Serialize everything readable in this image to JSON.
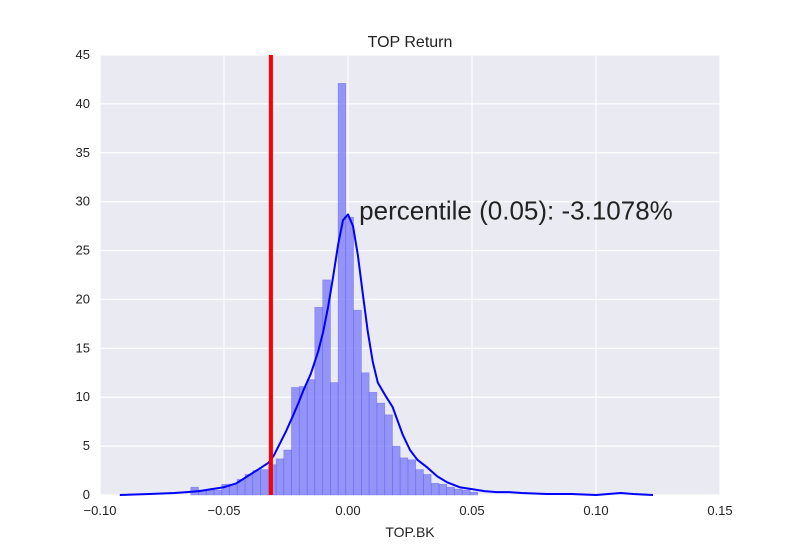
{
  "chart_data": {
    "type": "bar",
    "title": "TOP Return",
    "xlabel": "TOP.BK",
    "ylabel": "",
    "xlim": [
      -0.1,
      0.15
    ],
    "ylim": [
      0,
      45
    ],
    "x_ticks": [
      -0.1,
      -0.05,
      0.0,
      0.05,
      0.1,
      0.15
    ],
    "x_tick_labels": [
      "−0.10",
      "−0.05",
      "0.00",
      "0.05",
      "0.10",
      "0.15"
    ],
    "y_ticks": [
      0,
      5,
      10,
      15,
      20,
      25,
      30,
      35,
      40,
      45
    ],
    "y_tick_labels": [
      "0",
      "5",
      "10",
      "15",
      "20",
      "25",
      "30",
      "35",
      "40",
      "45"
    ],
    "grid": true,
    "histogram": {
      "bin_width": 0.00313,
      "bins": [
        {
          "left": -0.0634,
          "height": 0.8
        },
        {
          "left": -0.0603,
          "height": 0.5
        },
        {
          "left": -0.0572,
          "height": 0.5
        },
        {
          "left": -0.054,
          "height": 0.5
        },
        {
          "left": -0.0509,
          "height": 1.1
        },
        {
          "left": -0.0478,
          "height": 1.1
        },
        {
          "left": -0.0447,
          "height": 1.6
        },
        {
          "left": -0.0415,
          "height": 2.1
        },
        {
          "left": -0.0384,
          "height": 2.5
        },
        {
          "left": -0.0353,
          "height": 2.6
        },
        {
          "left": -0.0321,
          "height": 3.1
        },
        {
          "left": -0.029,
          "height": 3.7
        },
        {
          "left": -0.0259,
          "height": 4.6
        },
        {
          "left": -0.0228,
          "height": 11.0
        },
        {
          "left": -0.0196,
          "height": 11.1
        },
        {
          "left": -0.0165,
          "height": 11.8
        },
        {
          "left": -0.0134,
          "height": 19.2
        },
        {
          "left": -0.0102,
          "height": 22.0
        },
        {
          "left": -0.0071,
          "height": 11.5
        },
        {
          "left": -0.004,
          "height": 42.1
        },
        {
          "left": -0.0009,
          "height": 28.4
        },
        {
          "left": 0.0023,
          "height": 18.9
        },
        {
          "left": 0.0054,
          "height": 12.5
        },
        {
          "left": 0.0085,
          "height": 10.5
        },
        {
          "left": 0.0117,
          "height": 9.4
        },
        {
          "left": 0.0148,
          "height": 8.2
        },
        {
          "left": 0.0179,
          "height": 5.0
        },
        {
          "left": 0.021,
          "height": 3.8
        },
        {
          "left": 0.0242,
          "height": 3.6
        },
        {
          "left": 0.0273,
          "height": 2.6
        },
        {
          "left": 0.0304,
          "height": 2.1
        },
        {
          "left": 0.0336,
          "height": 1.2
        },
        {
          "left": 0.0367,
          "height": 1.1
        },
        {
          "left": 0.0398,
          "height": 0.8
        },
        {
          "left": 0.0429,
          "height": 0.6
        },
        {
          "left": 0.0461,
          "height": 0.5
        },
        {
          "left": 0.0492,
          "height": 0.3
        }
      ]
    },
    "kde": {
      "x": [
        -0.092,
        -0.08,
        -0.07,
        -0.065,
        -0.06,
        -0.055,
        -0.05,
        -0.045,
        -0.04,
        -0.035,
        -0.032,
        -0.03,
        -0.028,
        -0.025,
        -0.022,
        -0.02,
        -0.018,
        -0.015,
        -0.012,
        -0.01,
        -0.008,
        -0.006,
        -0.004,
        -0.002,
        0.0,
        0.002,
        0.004,
        0.006,
        0.008,
        0.01,
        0.012,
        0.015,
        0.018,
        0.02,
        0.022,
        0.025,
        0.028,
        0.032,
        0.036,
        0.04,
        0.045,
        0.05,
        0.055,
        0.06,
        0.065,
        0.07,
        0.08,
        0.09,
        0.1,
        0.11,
        0.115,
        0.123
      ],
      "y": [
        0.0,
        0.1,
        0.2,
        0.3,
        0.4,
        0.6,
        0.8,
        1.2,
        2.0,
        2.8,
        3.3,
        4.0,
        5.0,
        6.5,
        8.2,
        9.4,
        10.7,
        12.4,
        14.7,
        16.7,
        19.3,
        22.3,
        25.6,
        28.1,
        28.7,
        27.5,
        24.5,
        20.5,
        16.7,
        13.6,
        11.5,
        10.2,
        9.0,
        7.6,
        6.2,
        4.6,
        3.6,
        2.8,
        1.9,
        1.3,
        0.8,
        0.6,
        0.4,
        0.3,
        0.3,
        0.2,
        0.1,
        0.1,
        0.0,
        0.2,
        0.1,
        0.0
      ]
    },
    "percentile_line": {
      "x": -0.031078,
      "label": "percentile (0.05): -3.1078%"
    },
    "colors": {
      "background": "#eaeaf2",
      "grid": "#ffffff",
      "bars": "#6e6efb",
      "kde": "#0000ff",
      "percentile": "#ff0000"
    }
  }
}
